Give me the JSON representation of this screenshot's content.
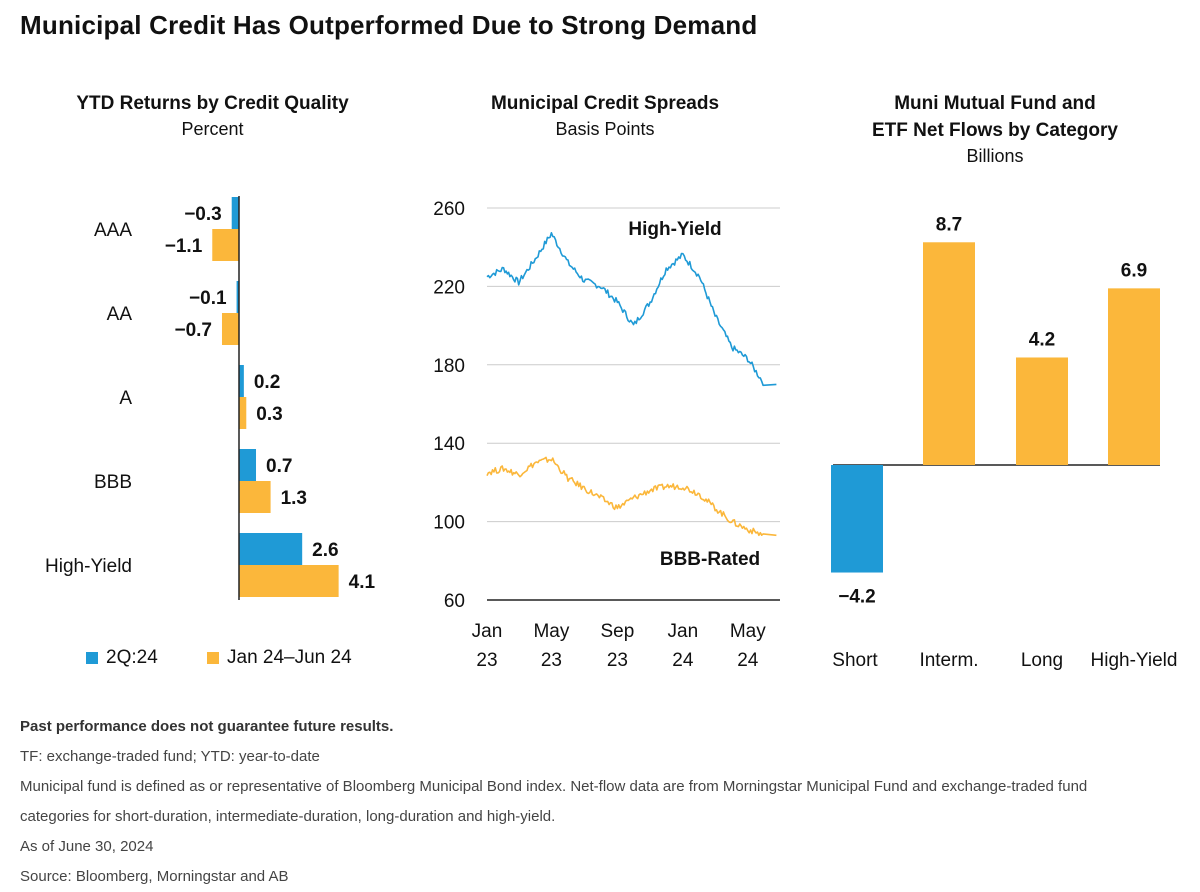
{
  "title": "Municipal Credit Has Outperformed Due to Strong Demand",
  "colors": {
    "blue": "#1f9ad6",
    "gold": "#fbb73b",
    "axis": "#222222",
    "grid": "#cccccc"
  },
  "chart_data": [
    {
      "type": "bar",
      "orientation": "horizontal",
      "title": "YTD Returns by Credit Quality",
      "subtitle": "Percent",
      "categories": [
        "AAA",
        "AA",
        "A",
        "BBB",
        "High-Yield"
      ],
      "series": [
        {
          "name": "2Q:24",
          "color": "#1f9ad6",
          "values": [
            -0.3,
            -0.1,
            0.2,
            0.7,
            2.6
          ],
          "labels": [
            "−0.3",
            "−0.1",
            "0.2",
            "0.7",
            "2.6"
          ]
        },
        {
          "name": "Jan 24–Jun 24",
          "color": "#fbb73b",
          "values": [
            -1.1,
            -0.7,
            0.3,
            1.3,
            4.1
          ],
          "labels": [
            "−1.1",
            "−0.7",
            "0.3",
            "1.3",
            "4.1"
          ]
        }
      ]
    },
    {
      "type": "line",
      "title": "Municipal Credit Spreads",
      "subtitle": "Basis Points",
      "ylim": [
        60,
        260
      ],
      "yticks": [
        "60",
        "100",
        "140",
        "180",
        "220",
        "260"
      ],
      "xticks": [
        {
          "date": "2023-01",
          "top": "Jan",
          "bottom": "23"
        },
        {
          "date": "2023-05",
          "top": "May",
          "bottom": "23"
        },
        {
          "date": "2023-09",
          "top": "Sep",
          "bottom": "23"
        },
        {
          "date": "2024-01",
          "top": "Jan",
          "bottom": "24"
        },
        {
          "date": "2024-05",
          "top": "May",
          "bottom": "24"
        }
      ],
      "grid": true,
      "series": [
        {
          "name": "High-Yield",
          "color": "#1f9ad6",
          "x": [
            "2023-01",
            "2023-02",
            "2023-03",
            "2023-04",
            "2023-05",
            "2023-06",
            "2023-07",
            "2023-08",
            "2023-09",
            "2023-10",
            "2023-11",
            "2023-12",
            "2024-01",
            "2024-02",
            "2024-03",
            "2024-04",
            "2024-05",
            "2024-06"
          ],
          "values": [
            225,
            229,
            222,
            234,
            247,
            232,
            223,
            220,
            212,
            200,
            212,
            229,
            236,
            225,
            205,
            189,
            183,
            170
          ]
        },
        {
          "name": "BBB-Rated",
          "color": "#fbb73b",
          "x": [
            "2023-01",
            "2023-02",
            "2023-03",
            "2023-04",
            "2023-05",
            "2023-06",
            "2023-07",
            "2023-08",
            "2023-09",
            "2023-10",
            "2023-11",
            "2023-12",
            "2024-01",
            "2024-02",
            "2024-03",
            "2024-04",
            "2024-05",
            "2024-06"
          ],
          "values": [
            125,
            127,
            124,
            130,
            132,
            122,
            117,
            112,
            107,
            112,
            116,
            118,
            118,
            114,
            107,
            100,
            96,
            93
          ]
        }
      ]
    },
    {
      "type": "bar",
      "title": "Muni Mutual Fund and ETF Net Flows by Category",
      "title_lines": [
        "Muni Mutual Fund and",
        "ETF Net Flows by Category"
      ],
      "subtitle": "Billions",
      "categories": [
        "Short",
        "Interm.",
        "Long",
        "High-Yield"
      ],
      "values": [
        -4.2,
        8.7,
        4.2,
        6.9
      ],
      "labels": [
        "−4.2",
        "8.7",
        "4.2",
        "6.9"
      ],
      "colors": [
        "#1f9ad6",
        "#fbb73b",
        "#fbb73b",
        "#fbb73b"
      ]
    }
  ],
  "footnotes": [
    "Past performance does not guarantee future results.",
    "TF: exchange-traded fund; YTD: year-to-date",
    "Municipal fund is defined as or representative of Bloomberg Municipal Bond index. Net-flow data are from Morningstar Municipal Fund and exchange-traded fund",
    "categories for short-duration, intermediate-duration, long-duration and high-yield.",
    "As of June 30, 2024",
    "Source: Bloomberg, Morningstar and AB"
  ]
}
